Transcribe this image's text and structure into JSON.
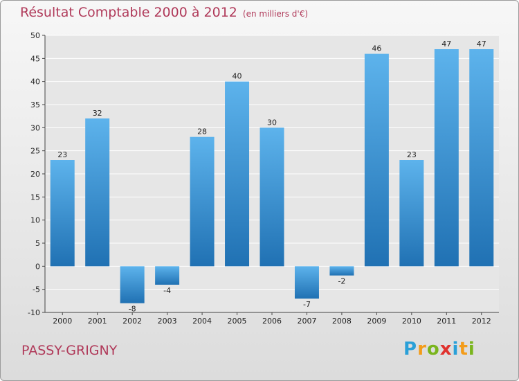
{
  "title": "Résultat Comptable 2000 à 2012",
  "subtitle": "(en milliers d'€)",
  "commune": "PASSY-GRIGNY",
  "brand": {
    "letters": [
      "P",
      "r",
      "o",
      "x",
      "i",
      "t",
      "i"
    ],
    "colors": [
      "#2aa0d8",
      "#f39c1a",
      "#7ab51d",
      "#e0322e",
      "#2aa0d8",
      "#f39c1a",
      "#7ab51d"
    ]
  },
  "colors": {
    "bar_top": "#5db3ec",
    "bar_bottom": "#2071b3",
    "grid": "#ffffff",
    "title": "#b03a5a"
  },
  "chart_data": {
    "type": "bar",
    "categories": [
      "2000",
      "2001",
      "2002",
      "2003",
      "2004",
      "2005",
      "2006",
      "2007",
      "2008",
      "2009",
      "2010",
      "2011",
      "2012"
    ],
    "values": [
      23,
      32,
      -8,
      -4,
      28,
      40,
      30,
      -7,
      -2,
      46,
      23,
      47,
      47
    ],
    "ylim": [
      -10,
      50
    ],
    "yticks": [
      -10,
      -5,
      0,
      5,
      10,
      15,
      20,
      25,
      30,
      35,
      40,
      45,
      50
    ],
    "grid": true,
    "xlabel": "",
    "ylabel": ""
  }
}
